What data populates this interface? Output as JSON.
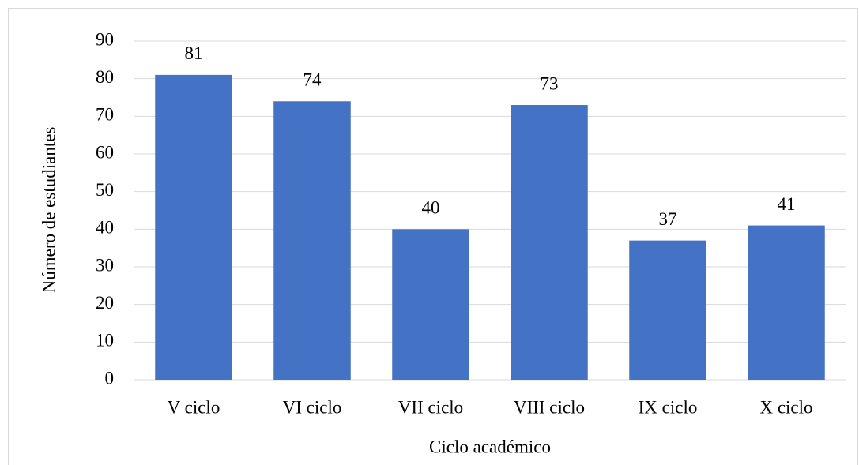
{
  "chart_data": {
    "type": "bar",
    "xlabel": "Ciclo académico",
    "ylabel": "Número de estudiantes",
    "categories": [
      "V ciclo",
      "VI ciclo",
      "VII ciclo",
      "VIII ciclo",
      "IX ciclo",
      "X ciclo"
    ],
    "values": [
      81,
      74,
      40,
      73,
      37,
      41
    ],
    "color": "#4472c4",
    "ylim": [
      0,
      90
    ],
    "yticks": [
      0,
      10,
      20,
      30,
      40,
      50,
      60,
      70,
      80,
      90
    ],
    "grid": true
  }
}
